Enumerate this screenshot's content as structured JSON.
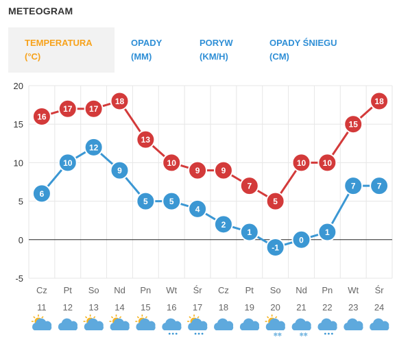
{
  "title": "METEOGRAM",
  "tabs": [
    {
      "line1": "TEMPERATURA",
      "line2": "(°C)",
      "active": true
    },
    {
      "line1": "OPADY",
      "line2": "(MM)",
      "active": false
    },
    {
      "line1": "PORYW",
      "line2": "(KM/H)",
      "active": false
    },
    {
      "line1": "OPADY ŚNIEGU",
      "line2": "(CM)",
      "active": false
    }
  ],
  "chart_data": {
    "type": "line",
    "ylim": [
      -5,
      20
    ],
    "yticks": [
      20,
      15,
      10,
      5,
      0,
      -5
    ],
    "grid": true,
    "categories": [
      {
        "day": "Cz",
        "date": "11",
        "icon": "sun-cloud-icon"
      },
      {
        "day": "Pt",
        "date": "12",
        "icon": "cloud-icon"
      },
      {
        "day": "So",
        "date": "13",
        "icon": "sun-cloud-icon"
      },
      {
        "day": "Nd",
        "date": "14",
        "icon": "sun-cloud-icon"
      },
      {
        "day": "Pn",
        "date": "15",
        "icon": "sun-cloud-icon"
      },
      {
        "day": "Wt",
        "date": "16",
        "icon": "cloud-rain-icon"
      },
      {
        "day": "Śr",
        "date": "17",
        "icon": "sun-cloud-rain-icon"
      },
      {
        "day": "Cz",
        "date": "18",
        "icon": "cloud-icon"
      },
      {
        "day": "Pt",
        "date": "19",
        "icon": "cloud-icon"
      },
      {
        "day": "So",
        "date": "20",
        "icon": "sun-snow-icon"
      },
      {
        "day": "Nd",
        "date": "21",
        "icon": "cloud-snow-icon"
      },
      {
        "day": "Pn",
        "date": "22",
        "icon": "cloud-rain-icon"
      },
      {
        "day": "Wt",
        "date": "23",
        "icon": "cloud-icon"
      },
      {
        "day": "Śr",
        "date": "24",
        "icon": "cloud-icon"
      }
    ],
    "series": [
      {
        "color": "#d33a3a",
        "values": [
          16,
          17,
          17,
          18,
          13,
          10,
          9,
          9,
          7,
          5,
          10,
          10,
          15,
          18
        ]
      },
      {
        "color": "#3b97d3",
        "values": [
          6,
          10,
          12,
          9,
          5,
          5,
          4,
          2,
          1,
          -1,
          0,
          1,
          7,
          7
        ]
      }
    ]
  }
}
